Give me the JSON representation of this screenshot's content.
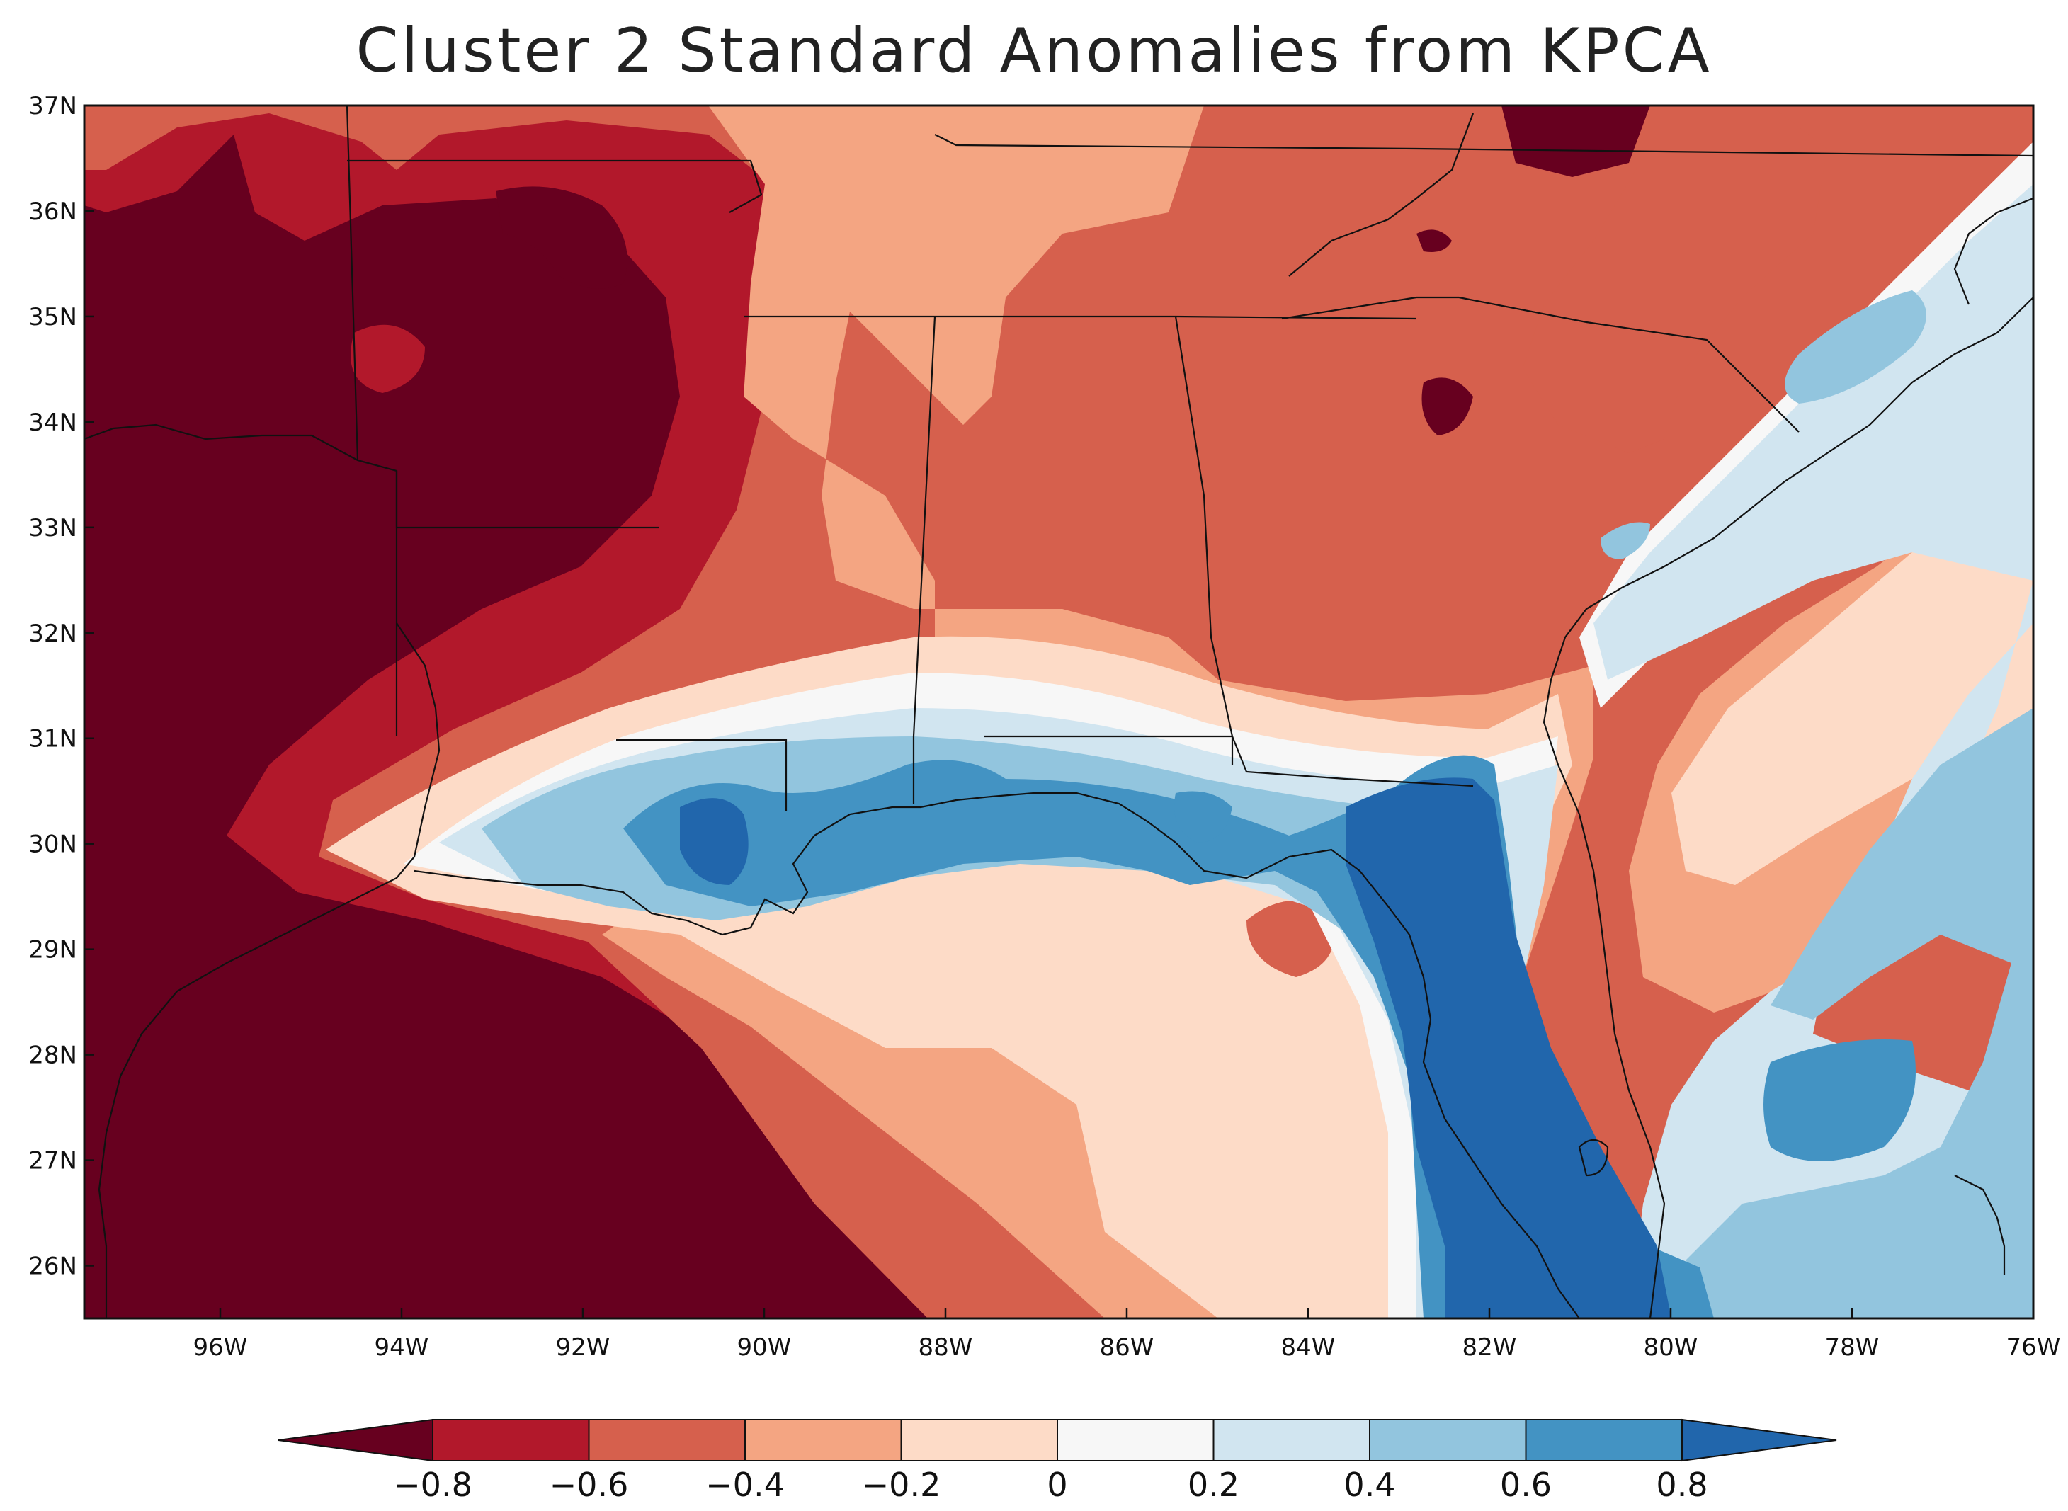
{
  "title": "Cluster 2 Standard Anomalies from KPCA",
  "map": {
    "region": "Southeastern United States and Gulf of Mexico",
    "lon_range": [
      -97.5,
      -76
    ],
    "lat_range": [
      25.5,
      37
    ],
    "x_ticks": [
      "96W",
      "94W",
      "92W",
      "90W",
      "88W",
      "86W",
      "84W",
      "82W",
      "80W",
      "78W",
      "76W"
    ],
    "y_ticks": [
      "37N",
      "36N",
      "35N",
      "34N",
      "33N",
      "32N",
      "31N",
      "30N",
      "29N",
      "28N",
      "27N",
      "26N"
    ]
  },
  "colorbar": {
    "labels": [
      "−0.8",
      "−0.6",
      "−0.4",
      "−0.2",
      "0",
      "0.2",
      "0.4",
      "0.6",
      "0.8"
    ],
    "colors": [
      "#67001f",
      "#b2182b",
      "#d6604d",
      "#f4a582",
      "#fddbc7",
      "#f7f7f7",
      "#d1e5f0",
      "#92c5de",
      "#4393c3",
      "#2166ac"
    ]
  }
}
